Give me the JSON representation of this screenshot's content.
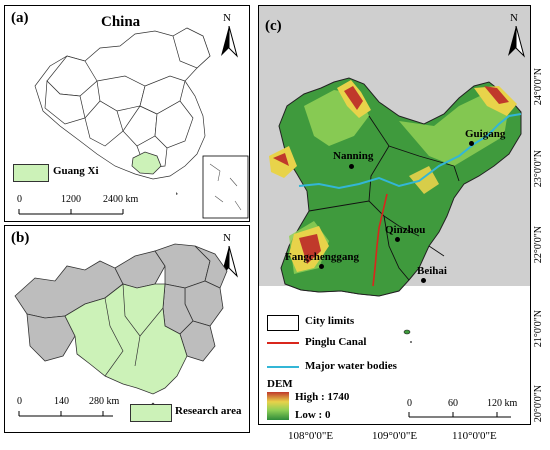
{
  "panel_a": {
    "label": "(a)",
    "title": "China",
    "north": "N",
    "legend_label": "Guang Xi",
    "scale_ticks": [
      "0",
      "1200",
      "2400 km"
    ]
  },
  "panel_b": {
    "label": "(b)",
    "north": "N",
    "legend_label": "Research area",
    "scale_ticks": [
      "0",
      "140",
      "280 km"
    ]
  },
  "panel_c": {
    "label": "(c)",
    "north": "N",
    "cities": [
      "Nanning",
      "Guigang",
      "Qinzhou",
      "Fangchenggang",
      "Beihai"
    ],
    "legend": {
      "city_limits": "City limits",
      "canal": "Pinglu Canal",
      "water": "Major water bodies",
      "dem_title": "DEM",
      "dem_high": "High : 1740",
      "dem_low": "Low : 0"
    },
    "scale_ticks": [
      "0",
      "60",
      "120 km"
    ],
    "lat_labels": [
      "24°0'0\"N",
      "23°0'0\"N",
      "22°0'0\"N",
      "21°0'0\"N",
      "20°0'0\"N"
    ],
    "lon_labels": [
      "108°0'0\"E",
      "109°0'0\"E",
      "110°0'0\"E"
    ]
  },
  "colors": {
    "guangxi_fill": "#ccf2b8",
    "gray_region": "#bdbdbd",
    "canal": "#d9261c",
    "water": "#33b6d6",
    "dem_high": "#c0392b",
    "dem_low": "#2e8b3a"
  }
}
